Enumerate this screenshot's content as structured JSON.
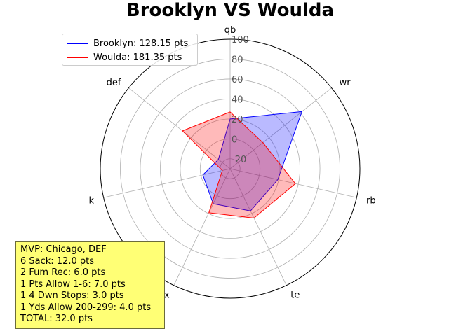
{
  "chart_data": {
    "type": "radar",
    "title": "Brooklyn VS Woulda",
    "axes": [
      "qb",
      "wr",
      "rb",
      "te",
      "flx",
      "k",
      "def"
    ],
    "radial_ticks": [
      -20,
      0,
      20,
      40,
      60,
      80,
      100
    ],
    "rlim": [
      -30,
      100
    ],
    "grid": true,
    "legend_position": "top-left",
    "series": [
      {
        "name": "Brooklyn: 128.15 pts",
        "color": "#0000ff",
        "fill": "#0000ff",
        "values": [
          20,
          62,
          19,
          17,
          9,
          -2,
          -15
        ]
      },
      {
        "name": "Woulda: 181.35 pts",
        "color": "#ff0000",
        "fill": "#ff0000",
        "values": [
          27,
          12,
          37,
          25,
          19,
          -22,
          31
        ]
      }
    ]
  },
  "legend": {
    "items": [
      {
        "label": "Brooklyn: 128.15 pts",
        "color": "#0000ff"
      },
      {
        "label": "Woulda: 181.35 pts",
        "color": "#ff0000"
      }
    ]
  },
  "mvp_box": {
    "lines": [
      "MVP: Chicago, DEF",
      "6 Sack: 12.0 pts",
      "2 Fum Rec: 6.0 pts",
      "1 Pts Allow 1-6: 7.0 pts",
      "1 4 Dwn Stops: 3.0 pts",
      "1 Yds Allow 200-299: 4.0 pts",
      "TOTAL: 32.0 pts"
    ],
    "background": "#ffff75"
  }
}
